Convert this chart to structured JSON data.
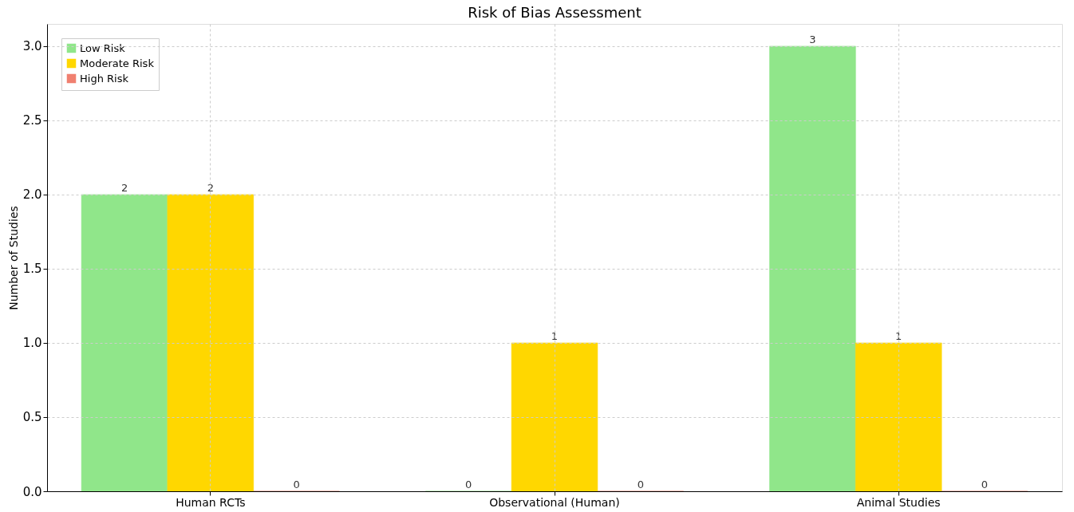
{
  "chart_data": {
    "type": "bar",
    "title": "Risk of Bias Assessment",
    "ylabel": "Number of Studies",
    "categories": [
      "Human RCTs",
      "Observational (Human)",
      "Animal Studies"
    ],
    "series": [
      {
        "name": "Low Risk",
        "color": "#90e68a",
        "values": [
          2,
          0,
          3
        ]
      },
      {
        "name": "Moderate Risk",
        "color": "#ffd700",
        "values": [
          2,
          1,
          1
        ]
      },
      {
        "name": "High Risk",
        "color": "#f08070",
        "values": [
          0,
          0,
          0
        ]
      }
    ],
    "ylim": [
      0,
      3.15
    ],
    "yticks": [
      {
        "value": 0,
        "label": "0.0"
      },
      {
        "value": 0.5,
        "label": "0.5"
      },
      {
        "value": 1,
        "label": "1.0"
      },
      {
        "value": 1.5,
        "label": "1.5"
      },
      {
        "value": 2,
        "label": "2.0"
      },
      {
        "value": 2.5,
        "label": "2.5"
      },
      {
        "value": 3,
        "label": "3.0"
      }
    ],
    "grid": true,
    "legend": "top left",
    "data_labels": true
  }
}
